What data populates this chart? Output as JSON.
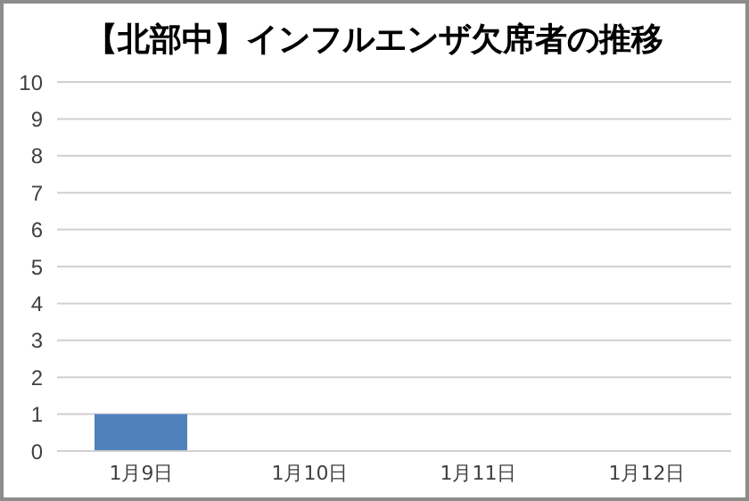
{
  "chart_data": {
    "type": "bar",
    "title": "【北部中】インフルエンザ欠席者の推移",
    "categories": [
      "1月9日",
      "1月10日",
      "1月11日",
      "1月12日"
    ],
    "values": [
      1,
      null,
      null,
      null
    ],
    "color": "#4f81bd",
    "ylim": [
      0,
      10
    ],
    "yticks": [
      0,
      1,
      2,
      3,
      4,
      5,
      6,
      7,
      8,
      9,
      10
    ],
    "grid": "y"
  }
}
